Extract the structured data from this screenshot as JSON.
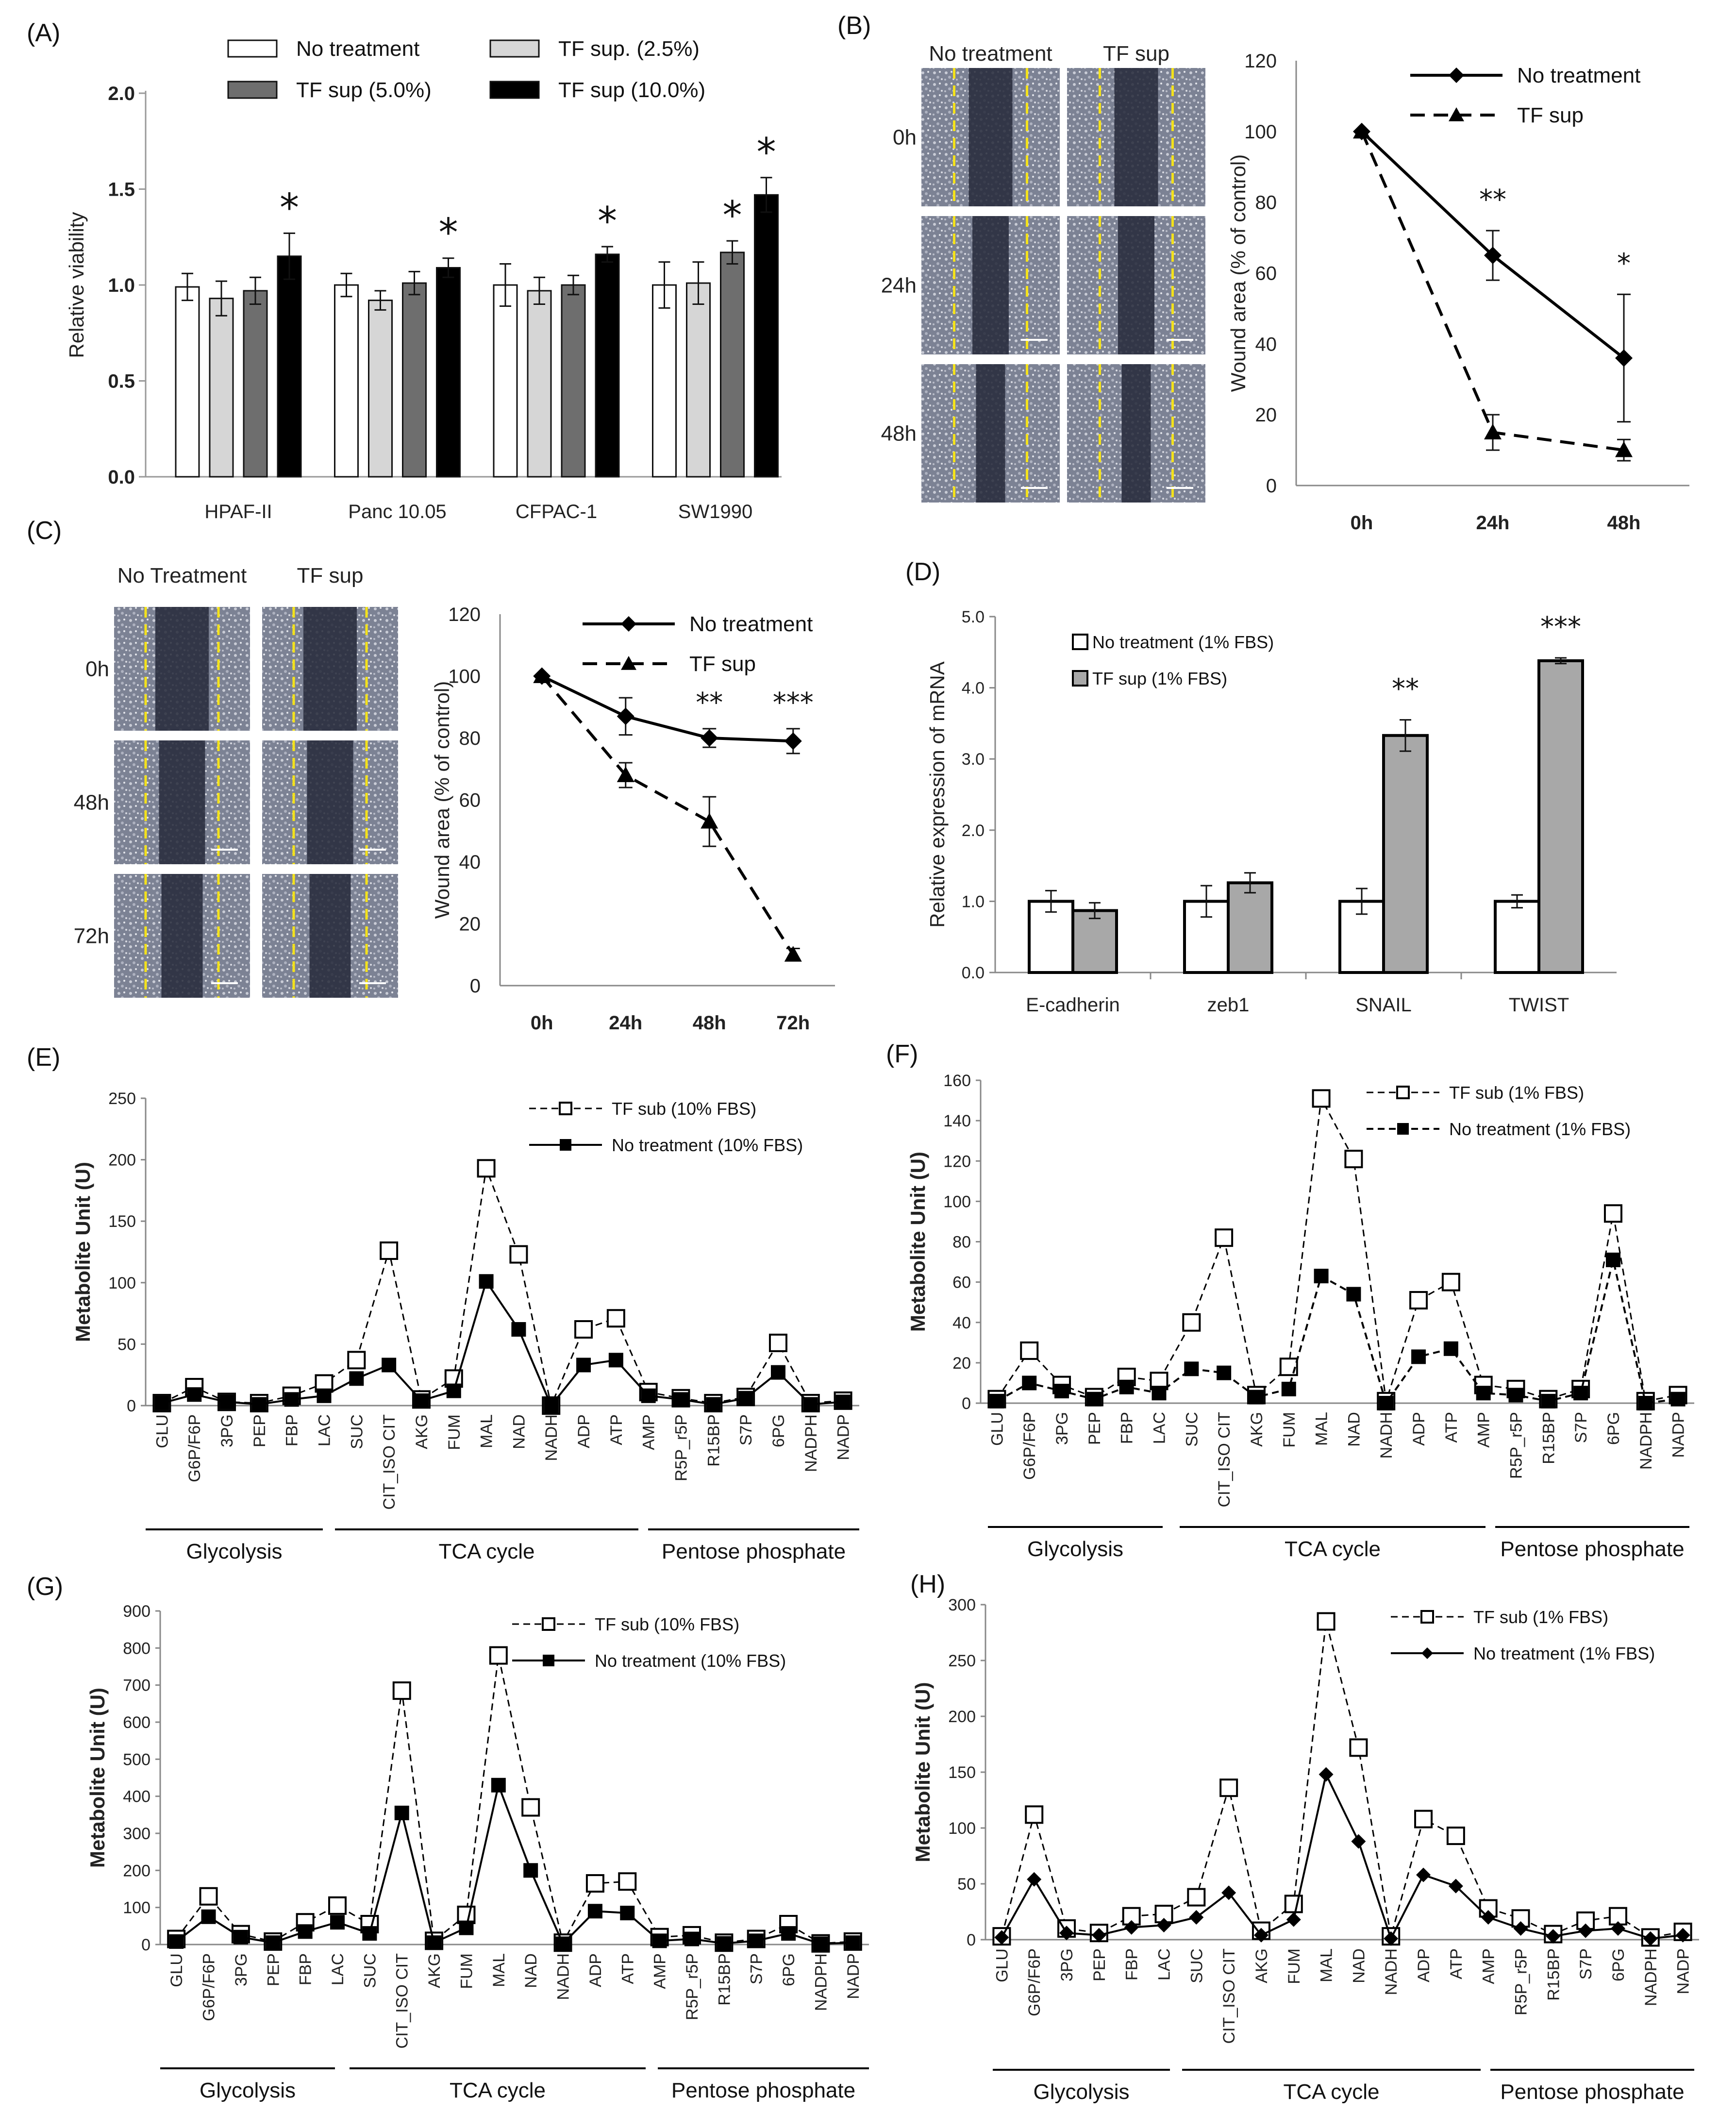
{
  "chart_data": [
    {
      "id": "A",
      "label": "(A)",
      "type": "bar",
      "categories": [
        "HPAF-II",
        "Panc 10.05",
        "CFPAC-1",
        "SW1990"
      ],
      "ylabel": "Relative viability",
      "ylim": [
        0,
        2.0
      ],
      "yticks": [
        "0.0",
        "0.5",
        "1.0",
        "1.5",
        "2.0"
      ],
      "series": [
        {
          "name": "No treatment",
          "values": [
            0.99,
            1.0,
            1.0,
            1.0
          ],
          "errors": [
            0.07,
            0.06,
            0.11,
            0.12
          ],
          "color": "#ffffff"
        },
        {
          "name": "TF sup. (2.5%)",
          "values": [
            0.93,
            0.92,
            0.97,
            1.01
          ],
          "errors": [
            0.09,
            0.05,
            0.07,
            0.11
          ],
          "color": "#d6d6d6"
        },
        {
          "name": "TF sup (5.0%)",
          "values": [
            0.97,
            1.01,
            1.0,
            1.17
          ],
          "errors": [
            0.07,
            0.06,
            0.05,
            0.06
          ],
          "color": "#6e6e6e"
        },
        {
          "name": "TF sup (10.0%)",
          "values": [
            1.15,
            1.09,
            1.16,
            1.47
          ],
          "errors": [
            0.12,
            0.05,
            0.04,
            0.09
          ],
          "color": "#000000"
        }
      ],
      "stars": [
        "*",
        "*",
        "*",
        "*"
      ],
      "extra_star": "*"
    },
    {
      "id": "B",
      "label": "(B)",
      "type": "line",
      "x": [
        "0h",
        "24h",
        "48h"
      ],
      "ylabel": "Wound area (% of control)",
      "ylim": [
        0,
        120
      ],
      "yticks": [
        "0",
        "20",
        "40",
        "60",
        "80",
        "100",
        "120"
      ],
      "series": [
        {
          "name": "No treatment",
          "values": [
            100,
            65,
            36
          ],
          "errors": [
            0,
            7,
            18
          ],
          "style": "solid",
          "marker": "diamond"
        },
        {
          "name": "TF sup",
          "values": [
            100,
            15,
            10
          ],
          "errors": [
            0,
            5,
            3
          ],
          "style": "dashed",
          "marker": "triangle"
        }
      ],
      "annotations": [
        "",
        "**",
        "*"
      ],
      "image_columns": [
        "No treatment",
        "TF sup"
      ],
      "image_rows": [
        "0h",
        "24h",
        "48h"
      ]
    },
    {
      "id": "C",
      "label": "(C)",
      "type": "line",
      "x": [
        "0h",
        "24h",
        "48h",
        "72h"
      ],
      "ylabel": "Wound area (% of control)",
      "ylim": [
        0,
        120
      ],
      "yticks": [
        "0",
        "20",
        "40",
        "60",
        "80",
        "100",
        "120"
      ],
      "series": [
        {
          "name": "No treatment",
          "values": [
            100,
            87,
            80,
            79
          ],
          "errors": [
            0,
            6,
            3,
            4
          ],
          "style": "solid",
          "marker": "diamond"
        },
        {
          "name": "TF sup",
          "values": [
            100,
            68,
            53,
            10
          ],
          "errors": [
            0,
            4,
            8,
            2
          ],
          "style": "dashed",
          "marker": "triangle"
        }
      ],
      "annotations": [
        "",
        "",
        "**",
        "***"
      ],
      "image_columns": [
        "No Treatment",
        "TF sup"
      ],
      "image_rows": [
        "0h",
        "48h",
        "72h"
      ]
    },
    {
      "id": "D",
      "label": "(D)",
      "type": "bar",
      "categories": [
        "E-cadherin",
        "zeb1",
        "SNAIL",
        "TWIST"
      ],
      "ylabel": "Relative expression of mRNA",
      "ylim": [
        0,
        5.0
      ],
      "yticks": [
        "0.0",
        "1.0",
        "2.0",
        "3.0",
        "4.0",
        "5.0"
      ],
      "series": [
        {
          "name": "No treatment (1% FBS)",
          "values": [
            1.0,
            1.0,
            1.0,
            1.0
          ],
          "errors": [
            0.15,
            0.22,
            0.18,
            0.09
          ],
          "color": "#ffffff"
        },
        {
          "name": "TF sup (1% FBS)",
          "values": [
            0.87,
            1.26,
            3.33,
            4.38
          ],
          "errors": [
            0.11,
            0.14,
            0.22,
            0.04
          ],
          "color": "#a8a8a8"
        }
      ],
      "annotations": [
        "",
        "",
        "**",
        "***"
      ]
    },
    {
      "id": "E",
      "label": "(E)",
      "type": "line",
      "x": [
        "GLU",
        "G6P/F6P",
        "3PG",
        "PEP",
        "FBP",
        "LAC",
        "SUC",
        "CIT_ISO CIT",
        "AKG",
        "FUM",
        "MAL",
        "NAD",
        "NADH",
        "ADP",
        "ATP",
        "AMP",
        "R5P_r5P",
        "R15BP",
        "S7P",
        "6PG",
        "NADPH",
        "NADP"
      ],
      "ylabel": "Metabolite Unit (U)",
      "ylim": [
        0,
        250
      ],
      "yticks": [
        "0",
        "50",
        "100",
        "150",
        "200",
        "250"
      ],
      "series": [
        {
          "name": "TF sub (10% FBS)",
          "values": [
            2,
            15,
            3,
            2,
            8,
            18,
            37,
            126,
            5,
            22,
            193,
            123,
            0,
            62,
            71,
            11,
            6,
            2,
            7,
            51,
            2,
            4
          ],
          "style": "dashed",
          "marker": "open-square"
        },
        {
          "name": "No treatment (10% FBS)",
          "values": [
            2,
            9,
            3,
            1,
            5,
            8,
            22,
            33,
            4,
            12,
            101,
            62,
            0,
            33,
            37,
            8,
            5,
            1,
            6,
            27,
            1,
            3
          ],
          "style": "solid",
          "marker": "filled-square"
        }
      ],
      "groups": [
        "Glycolysis",
        "TCA cycle",
        "Pentose phosphate"
      ]
    },
    {
      "id": "F",
      "label": "(F)",
      "type": "line",
      "x": [
        "GLU",
        "G6P/F6P",
        "3PG",
        "PEP",
        "FBP",
        "LAC",
        "SUC",
        "CIT_ISO CIT",
        "AKG",
        "FUM",
        "MAL",
        "NAD",
        "NADH",
        "ADP",
        "ATP",
        "AMP",
        "R5P_r5P",
        "R15BP",
        "S7P",
        "6PG",
        "NADPH",
        "NADP"
      ],
      "ylabel": "Metabolite Unit (U)",
      "ylim": [
        0,
        160
      ],
      "yticks": [
        "0",
        "20",
        "40",
        "60",
        "80",
        "100",
        "120",
        "140",
        "160"
      ],
      "series": [
        {
          "name": "TF sub (1% FBS)",
          "values": [
            2,
            26,
            9,
            3,
            13,
            11,
            40,
            82,
            4,
            18,
            151,
            121,
            1,
            51,
            60,
            9,
            7,
            2,
            7,
            94,
            1,
            4
          ],
          "style": "dashed",
          "marker": "open-square"
        },
        {
          "name": "No treatment (1% FBS)",
          "values": [
            1,
            10,
            6,
            2,
            8,
            5,
            17,
            15,
            3,
            7,
            63,
            54,
            0,
            23,
            27,
            5,
            4,
            1,
            5,
            71,
            0,
            2
          ],
          "style": "dashed",
          "marker": "filled-square"
        }
      ],
      "groups": [
        "Glycolysis",
        "TCA cycle",
        "Pentose phosphate"
      ]
    },
    {
      "id": "G",
      "label": "(G)",
      "type": "line",
      "x": [
        "GLU",
        "G6P/F6P",
        "3PG",
        "PEP",
        "FBP",
        "LAC",
        "SUC",
        "CIT_ISO CIT",
        "AKG",
        "FUM",
        "MAL",
        "NAD",
        "NADH",
        "ADP",
        "ATP",
        "AMP",
        "R5P_r5P",
        "R15BP",
        "S7P",
        "6PG",
        "NADPH",
        "NADP"
      ],
      "ylabel": "Metabolite Unit (U)",
      "ylim": [
        0,
        900
      ],
      "yticks": [
        "0",
        "100",
        "200",
        "300",
        "400",
        "500",
        "600",
        "700",
        "800",
        "900"
      ],
      "series": [
        {
          "name": "TF sub (10% FBS)",
          "values": [
            15,
            130,
            28,
            8,
            60,
            105,
            55,
            685,
            10,
            80,
            780,
            370,
            5,
            165,
            170,
            20,
            25,
            5,
            15,
            55,
            3,
            8
          ],
          "style": "dashed",
          "marker": "open-square"
        },
        {
          "name": "No treatment (10% FBS)",
          "values": [
            8,
            75,
            20,
            5,
            35,
            60,
            30,
            355,
            5,
            45,
            430,
            200,
            2,
            90,
            85,
            10,
            15,
            3,
            10,
            30,
            2,
            5
          ],
          "style": "solid",
          "marker": "filled-square"
        }
      ],
      "groups": [
        "Glycolysis",
        "TCA cycle",
        "Pentose phosphate"
      ]
    },
    {
      "id": "H",
      "label": "(H)",
      "type": "line",
      "x": [
        "GLU",
        "G6P/F6P",
        "3PG",
        "PEP",
        "FBP",
        "LAC",
        "SUC",
        "CIT_ISO CIT",
        "AKG",
        "FUM",
        "MAL",
        "NAD",
        "NADH",
        "ADP",
        "ATP",
        "AMP",
        "R5P_r5P",
        "R15BP",
        "S7P",
        "6PG",
        "NADPH",
        "NADP"
      ],
      "ylabel": "Metabolite Unit (U)",
      "ylim": [
        0,
        300
      ],
      "yticks": [
        "0",
        "50",
        "100",
        "150",
        "200",
        "250",
        "300"
      ],
      "series": [
        {
          "name": "TF sub (1% FBS)",
          "values": [
            3,
            112,
            10,
            6,
            21,
            23,
            38,
            136,
            8,
            32,
            285,
            172,
            3,
            108,
            93,
            28,
            19,
            5,
            17,
            21,
            2,
            7
          ],
          "style": "dashed",
          "marker": "open-square"
        },
        {
          "name": "No treatment (1% FBS)",
          "values": [
            2,
            54,
            6,
            4,
            11,
            13,
            20,
            42,
            4,
            18,
            148,
            88,
            1,
            58,
            48,
            20,
            10,
            3,
            8,
            10,
            1,
            4
          ],
          "style": "solid",
          "marker": "filled-diamond"
        }
      ],
      "groups": [
        "Glycolysis",
        "TCA cycle",
        "Pentose phosphate"
      ]
    }
  ]
}
